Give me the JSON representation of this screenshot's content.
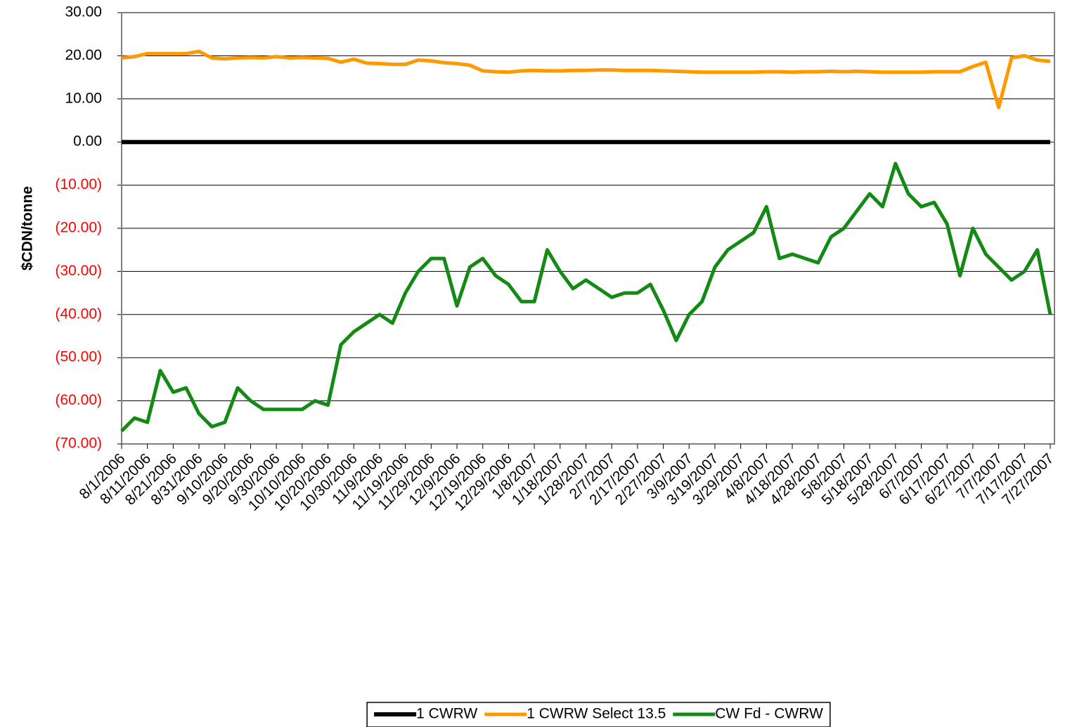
{
  "chart_data": {
    "type": "line",
    "y_label": "$CDN/tonne",
    "categories": [
      "8/1/2006",
      null,
      "8/11/2006",
      null,
      "8/21/2006",
      null,
      "8/31/2006",
      null,
      "9/10/2006",
      null,
      "9/20/2006",
      null,
      "9/30/2006",
      null,
      "10/10/2006",
      null,
      "10/20/2006",
      null,
      "10/30/2006",
      null,
      "11/9/2006",
      null,
      "11/19/2006",
      null,
      "11/29/2006",
      null,
      "12/9/2006",
      null,
      "12/19/2006",
      null,
      "12/29/2006",
      null,
      "1/8/2007",
      null,
      "1/18/2007",
      null,
      "1/28/2007",
      null,
      "2/7/2007",
      null,
      "2/17/2007",
      null,
      "2/27/2007",
      null,
      "3/9/2007",
      null,
      "3/19/2007",
      null,
      "3/29/2007",
      null,
      "4/8/2007",
      null,
      "4/18/2007",
      null,
      "4/28/2007",
      null,
      "5/8/2007",
      null,
      "5/18/2007",
      null,
      "5/28/2007",
      null,
      "6/7/2007",
      null,
      "6/17/2007",
      null,
      "6/27/2007",
      null,
      "7/7/2007",
      null,
      "7/17/2007",
      null,
      "7/27/2007"
    ],
    "series": [
      {
        "name": "1 CWRW",
        "color": "#000000",
        "width": 6,
        "values": [
          0,
          0,
          0,
          0,
          0,
          0,
          0,
          0,
          0,
          0,
          0,
          0,
          0,
          0,
          0,
          0,
          0,
          0,
          0,
          0,
          0,
          0,
          0,
          0,
          0,
          0,
          0,
          0,
          0,
          0,
          0,
          0,
          0,
          0,
          0,
          0,
          0,
          0,
          0,
          0,
          0,
          0,
          0,
          0,
          0,
          0,
          0,
          0,
          0,
          0,
          0,
          0,
          0,
          0,
          0,
          0,
          0,
          0,
          0,
          0,
          0,
          0,
          0,
          0,
          0,
          0,
          0,
          0,
          0,
          0,
          0,
          0,
          0
        ]
      },
      {
        "name": "1 CWRW Select 13.5",
        "color": "#ff9900",
        "width": 5,
        "values": [
          19.5,
          19.8,
          20.5,
          20.5,
          20.5,
          20.5,
          21,
          19.5,
          19.3,
          19.5,
          19.6,
          19.5,
          19.8,
          19.5,
          19.6,
          19.5,
          19.4,
          18.5,
          19.2,
          18.3,
          18.2,
          18,
          18,
          19,
          18.8,
          18.4,
          18.2,
          17.8,
          16.5,
          16.3,
          16.2,
          16.5,
          16.6,
          16.5,
          16.5,
          16.6,
          16.6,
          16.7,
          16.7,
          16.6,
          16.6,
          16.6,
          16.5,
          16.4,
          16.3,
          16.2,
          16.2,
          16.2,
          16.2,
          16.2,
          16.3,
          16.3,
          16.2,
          16.3,
          16.3,
          16.4,
          16.3,
          16.4,
          16.3,
          16.2,
          16.2,
          16.2,
          16.2,
          16.3,
          16.3,
          16.3,
          17.5,
          18.5,
          8,
          19.5,
          20,
          19,
          18.7
        ]
      },
      {
        "name": "CW Fd - CWRW",
        "color": "#138a13",
        "width": 5,
        "values": [
          -67,
          -64,
          -65,
          -53,
          -58,
          -57,
          -63,
          -66,
          -65,
          -57,
          -60,
          -62,
          -62,
          -62,
          -62,
          -60,
          -61,
          -47,
          -44,
          -42,
          -40,
          -42,
          -35,
          -30,
          -27,
          -27,
          -38,
          -29,
          -27,
          -31,
          -33,
          -37,
          -37,
          -25,
          -30,
          -34,
          -32,
          -34,
          -36,
          -35,
          -35,
          -33,
          -39,
          -46,
          -40,
          -37,
          -29,
          -25,
          -23,
          -21,
          -15,
          -27,
          -26,
          -27,
          -28,
          -22,
          -20,
          -16,
          -12,
          -15,
          -5,
          -12,
          -15,
          -14,
          -19,
          -31,
          -20,
          -26,
          -29,
          -32,
          -30,
          -25,
          -40
        ]
      }
    ],
    "ylim": [
      -70,
      30
    ],
    "yticks": [
      {
        "value": -70,
        "label": "(70.00)"
      },
      {
        "value": -60,
        "label": "(60.00)"
      },
      {
        "value": -50,
        "label": "(50.00)"
      },
      {
        "value": -40,
        "label": "(40.00)"
      },
      {
        "value": -30,
        "label": "(30.00)"
      },
      {
        "value": -20,
        "label": "(20.00)"
      },
      {
        "value": -10,
        "label": "(10.00)"
      },
      {
        "value": 0,
        "label": "0.00"
      },
      {
        "value": 10,
        "label": "10.00"
      },
      {
        "value": 20,
        "label": "20.00"
      },
      {
        "value": 30,
        "label": "30.00"
      }
    ],
    "negative_tick_color": "#ff0000",
    "grid": true,
    "legend": "bottom"
  }
}
